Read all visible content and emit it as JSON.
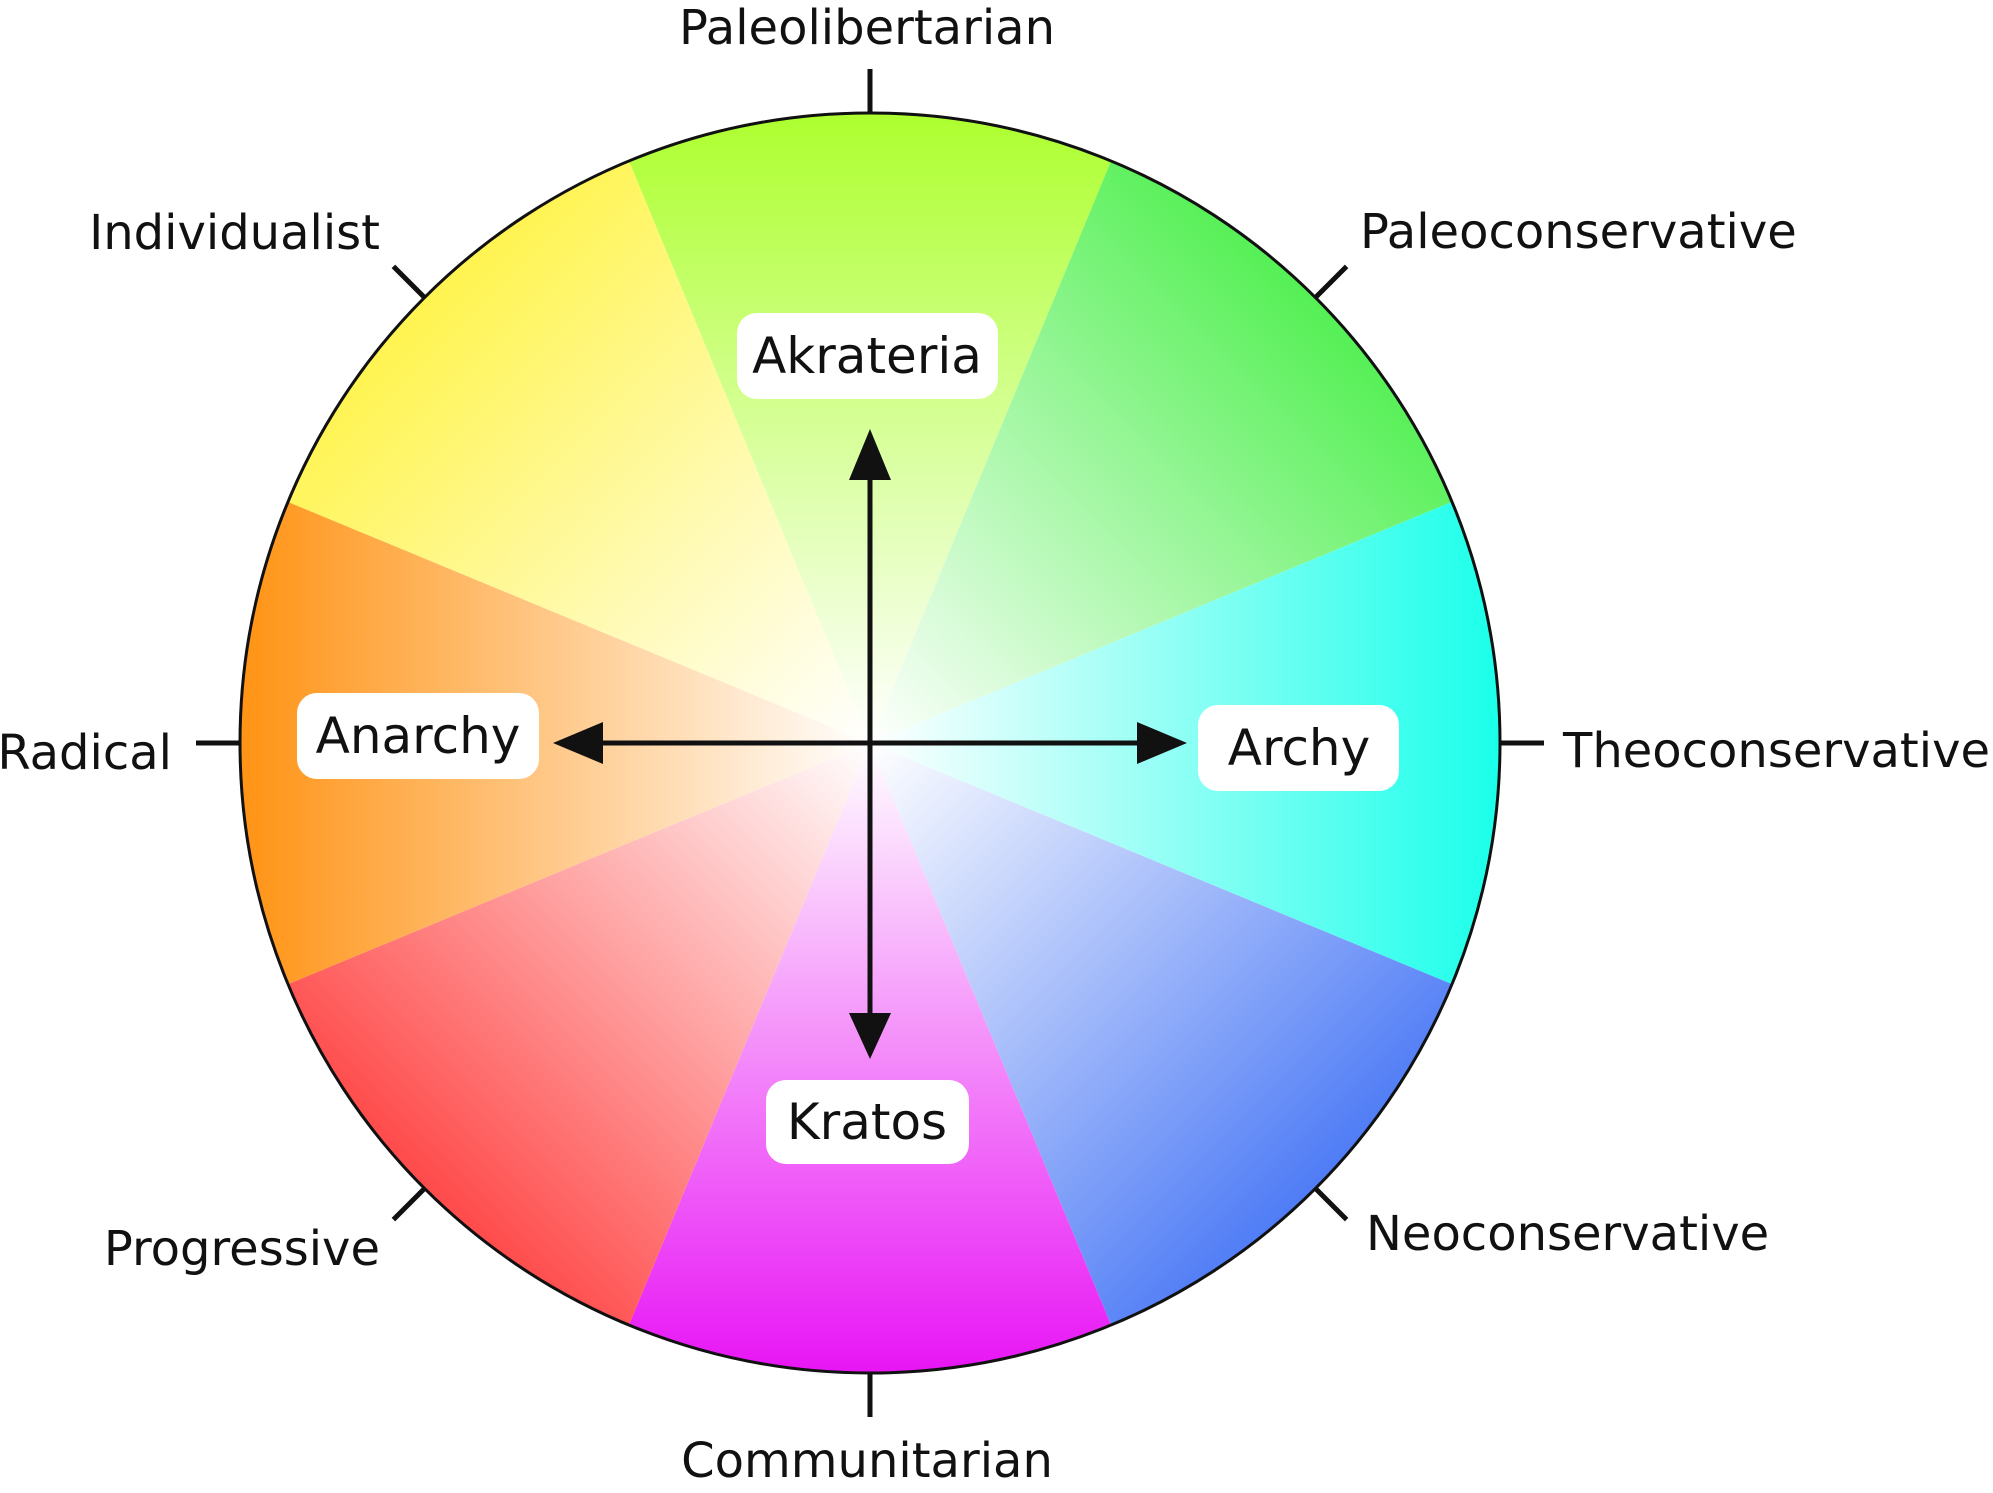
{
  "wheel": {
    "rim_labels": [
      {
        "id": "top",
        "text": "Paleolibertarian",
        "color": "#adff2f"
      },
      {
        "id": "top-right",
        "text": "Paleoconservative",
        "color": "#55f055"
      },
      {
        "id": "right",
        "text": "Theoconservative",
        "color": "#1affea"
      },
      {
        "id": "bottom-right",
        "text": "Neoconservative",
        "color": "#4f7cf6"
      },
      {
        "id": "bottom",
        "text": "Communitarian",
        "color": "#e815f5"
      },
      {
        "id": "bottom-left",
        "text": "Progressive",
        "color": "#ff4a4a"
      },
      {
        "id": "left",
        "text": "Radical",
        "color": "#ff9314"
      },
      {
        "id": "top-left",
        "text": "Individualist",
        "color": "#fff44f"
      }
    ],
    "axis_labels": {
      "up": "Akrateria",
      "down": "Kratos",
      "left": "Anarchy",
      "right": "Archy"
    },
    "center_color": "#ffffff",
    "outline_color": "#111111"
  }
}
